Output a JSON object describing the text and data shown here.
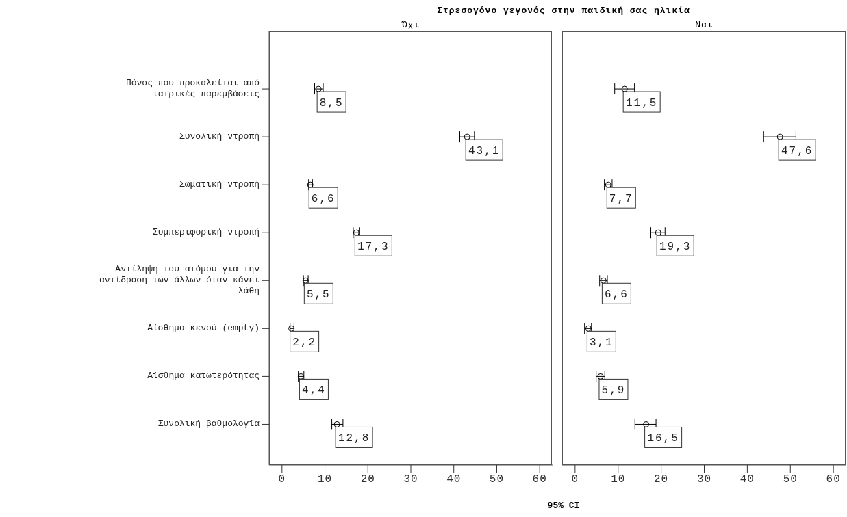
{
  "chart_data": [
    {
      "type": "scatter",
      "orientation": "horizontal",
      "title": "Στρεσογόνο γεγονός στην παιδική σας ηλικία",
      "subtitle": "Όχι",
      "xlabel": "95% CI",
      "categories": [
        "Πόνος που προκαλείται από ιατρικές παρεμβάσεις",
        "Συνολική ντροπή",
        "Σωματική ντροπή",
        "Συμπεριφορική ντροπή",
        "Αντίληψη του ατόμου για την αντίδραση των άλλων όταν κάνει λάθη",
        "Αίσθημα κενού (empty)",
        "Αίσθημα κατωτερότητας",
        "Συνολική βαθμολογία"
      ],
      "series": [
        {
          "color": "#000000",
          "values": [
            8.5,
            43.1,
            6.6,
            17.3,
            5.5,
            2.2,
            4.4,
            12.8
          ],
          "errors": [
            [
              7.6,
              9.6
            ],
            [
              41.4,
              44.8
            ],
            [
              6.2,
              7.1
            ],
            [
              16.6,
              18.1
            ],
            [
              5.0,
              6.1
            ],
            [
              1.9,
              2.8
            ],
            [
              3.8,
              5.1
            ],
            [
              11.6,
              14.2
            ]
          ],
          "value_labels": [
            "8,5",
            "43,1",
            "6,6",
            "17,3",
            "5,5",
            "2,2",
            "4,4",
            "12,8"
          ]
        }
      ],
      "xlim": [
        -3,
        63
      ],
      "xticks": [
        0,
        10,
        20,
        30,
        40,
        50,
        60
      ],
      "marker": "circle",
      "grid": false,
      "legend": false
    },
    {
      "type": "scatter",
      "orientation": "horizontal",
      "subtitle": "Ναι",
      "tick_labels": "x",
      "categories": [
        null,
        null,
        null,
        null,
        null,
        null,
        null,
        null
      ],
      "series": [
        {
          "color": "#000000",
          "values": [
            11.5,
            47.6,
            7.7,
            19.3,
            6.6,
            3.1,
            5.9,
            16.5
          ],
          "errors": [
            [
              9.2,
              13.8
            ],
            [
              43.8,
              51.3
            ],
            [
              6.8,
              8.6
            ],
            [
              17.6,
              20.9
            ],
            [
              5.7,
              7.5
            ],
            [
              2.2,
              3.8
            ],
            [
              4.9,
              6.9
            ],
            [
              13.9,
              18.8
            ]
          ],
          "value_labels": [
            "11,5",
            "47,6",
            "7,7",
            "19,3",
            "6,6",
            "3,1",
            "5,9",
            "16,5"
          ]
        }
      ],
      "xlim": [
        -3,
        63
      ],
      "xticks": [
        0,
        10,
        20,
        30,
        40,
        50,
        60
      ],
      "marker": "circle",
      "grid": false,
      "legend": false
    }
  ]
}
